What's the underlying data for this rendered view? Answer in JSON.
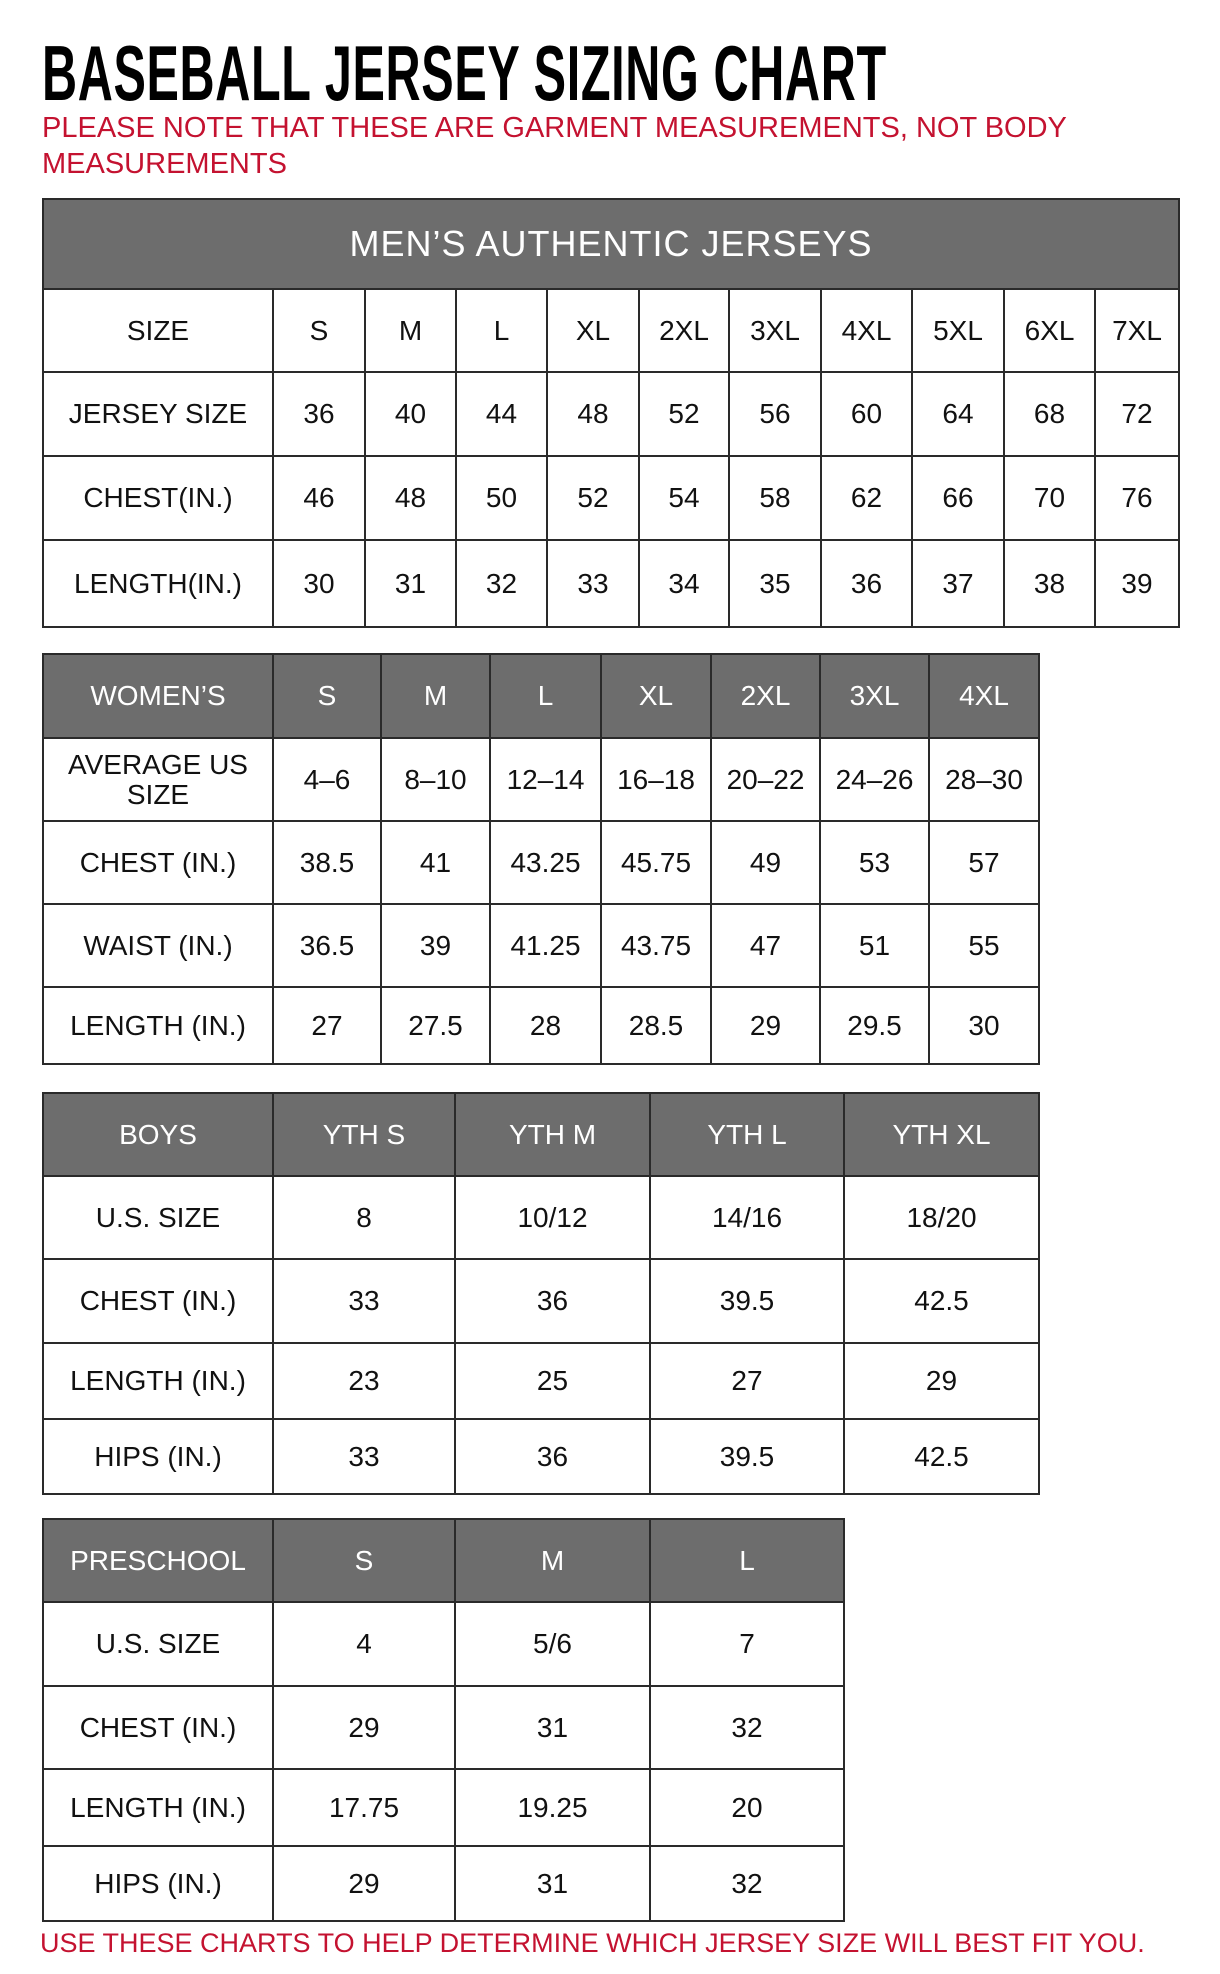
{
  "title": "BASEBALL JERSEY SIZING CHART",
  "note": "PLEASE NOTE THAT THESE ARE GARMENT MEASUREMENTS, NOT BODY MEASUREMENTS",
  "footer": "USE THESE CHARTS TO HELP DETERMINE WHICH JERSEY SIZE WILL BEST FIT YOU.",
  "colors": {
    "header_bg": "#6d6d6d",
    "note_red": "#c41230"
  },
  "tables": [
    {
      "id": "mens",
      "band": "MEN’S AUTHENTIC JERSEYS",
      "header_grey": false,
      "header": [
        "SIZE",
        "S",
        "M",
        "L",
        "XL",
        "2XL",
        "3XL",
        "4XL",
        "5XL",
        "6XL",
        "7XL"
      ],
      "rows": [
        [
          "JERSEY SIZE",
          "36",
          "40",
          "44",
          "48",
          "52",
          "56",
          "60",
          "64",
          "68",
          "72"
        ],
        [
          "CHEST(IN.)",
          "46",
          "48",
          "50",
          "52",
          "54",
          "58",
          "62",
          "66",
          "70",
          "76"
        ],
        [
          "LENGTH(IN.)",
          "30",
          "31",
          "32",
          "33",
          "34",
          "35",
          "36",
          "37",
          "38",
          "39"
        ]
      ]
    },
    {
      "id": "womens",
      "header_grey": true,
      "header": [
        "WOMEN’S",
        "S",
        "M",
        "L",
        "XL",
        "2XL",
        "3XL",
        "4XL"
      ],
      "rows": [
        [
          "AVERAGE US SIZE",
          "4–6",
          "8–10",
          "12–14",
          "16–18",
          "20–22",
          "24–26",
          "28–30"
        ],
        [
          "CHEST (IN.)",
          "38.5",
          "41",
          "43.25",
          "45.75",
          "49",
          "53",
          "57"
        ],
        [
          "WAIST (IN.)",
          "36.5",
          "39",
          "41.25",
          "43.75",
          "47",
          "51",
          "55"
        ],
        [
          "LENGTH (IN.)",
          "27",
          "27.5",
          "28",
          "28.5",
          "29",
          "29.5",
          "30"
        ]
      ]
    },
    {
      "id": "boys",
      "header_grey": true,
      "header": [
        "BOYS",
        "YTH S",
        "YTH M",
        "YTH L",
        "YTH XL"
      ],
      "rows": [
        [
          "U.S. SIZE",
          "8",
          "10/12",
          "14/16",
          "18/20"
        ],
        [
          "CHEST (IN.)",
          "33",
          "36",
          "39.5",
          "42.5"
        ],
        [
          "LENGTH (IN.)",
          "23",
          "25",
          "27",
          "29"
        ],
        [
          "HIPS (IN.)",
          "33",
          "36",
          "39.5",
          "42.5"
        ]
      ]
    },
    {
      "id": "preschool",
      "header_grey": true,
      "header": [
        "PRESCHOOL",
        "S",
        "M",
        "L"
      ],
      "rows": [
        [
          "U.S. SIZE",
          "4",
          "5/6",
          "7"
        ],
        [
          "CHEST (IN.)",
          "29",
          "31",
          "32"
        ],
        [
          "LENGTH (IN.)",
          "17.75",
          "19.25",
          "20"
        ],
        [
          "HIPS (IN.)",
          "29",
          "31",
          "32"
        ]
      ]
    }
  ]
}
